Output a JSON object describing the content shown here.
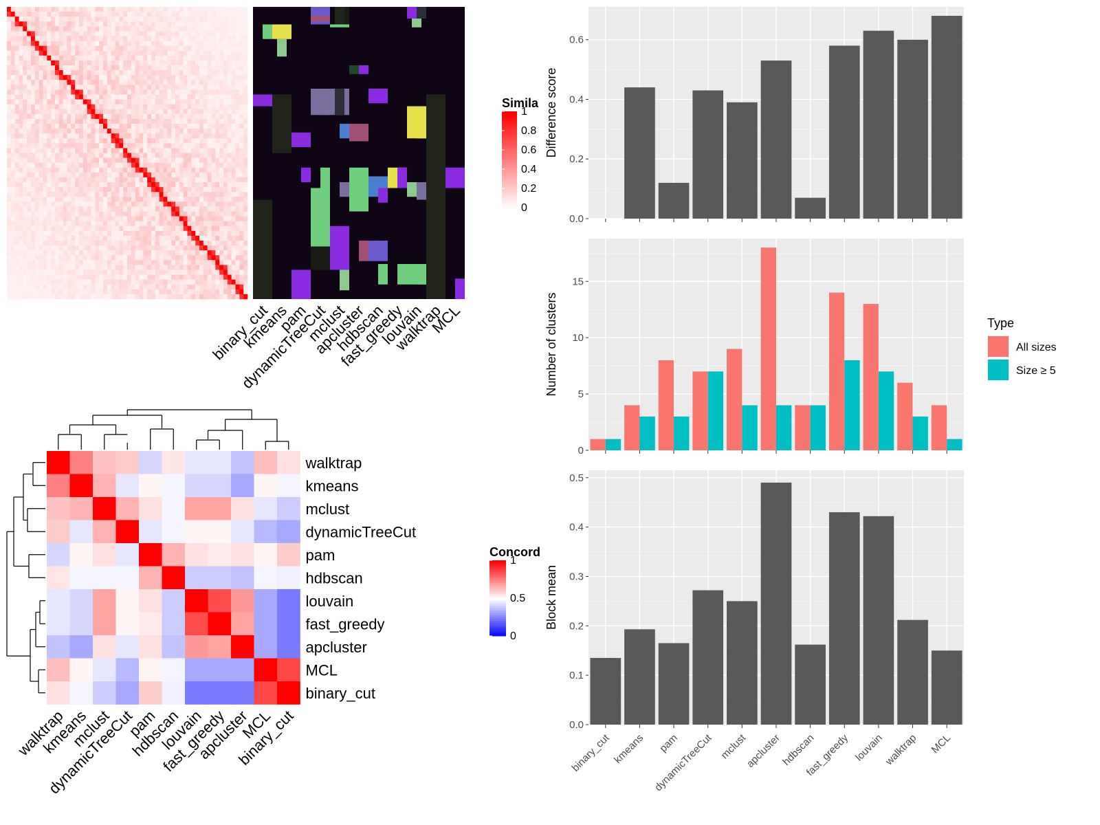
{
  "chart_data": [
    {
      "type": "heatmap",
      "legend": {
        "title": "Similarity",
        "ticks": [
          "1",
          "0.8",
          "0.6",
          "0.4",
          "0.2",
          "0"
        ]
      },
      "column_labels": [
        "binary_cut",
        "kmeans",
        "pam",
        "dynamicTreeCut",
        "mclust",
        "apcluster",
        "hdbscan",
        "fast_greedy",
        "louvain",
        "walktrap",
        "MCL"
      ],
      "colors": {
        "low": "#ffffff",
        "high": "#ff0000",
        "background": "#0f0515"
      }
    },
    {
      "type": "heatmap",
      "legend": {
        "title": "Concordance",
        "ticks": [
          "1",
          "0.5",
          "0"
        ]
      },
      "row_labels": [
        "walktrap",
        "kmeans",
        "mclust",
        "dynamicTreeCut",
        "pam",
        "hdbscan",
        "louvain",
        "fast_greedy",
        "apcluster",
        "MCL",
        "binary_cut"
      ],
      "column_labels": [
        "walktrap",
        "kmeans",
        "mclust",
        "dynamicTreeCut",
        "pam",
        "hdbscan",
        "louvain",
        "fast_greedy",
        "apcluster",
        "MCL",
        "binary_cut"
      ],
      "values": [
        [
          1.0,
          0.75,
          0.62,
          0.6,
          0.42,
          0.55,
          0.45,
          0.45,
          0.38,
          0.63,
          0.56
        ],
        [
          0.75,
          1.0,
          0.65,
          0.45,
          0.52,
          0.48,
          0.42,
          0.42,
          0.33,
          0.52,
          0.48
        ],
        [
          0.62,
          0.65,
          1.0,
          0.65,
          0.56,
          0.48,
          0.68,
          0.68,
          0.56,
          0.45,
          0.4
        ],
        [
          0.6,
          0.45,
          0.65,
          1.0,
          0.45,
          0.48,
          0.52,
          0.52,
          0.45,
          0.36,
          0.33
        ],
        [
          0.42,
          0.52,
          0.56,
          0.45,
          1.0,
          0.65,
          0.56,
          0.54,
          0.56,
          0.52,
          0.6
        ],
        [
          0.55,
          0.48,
          0.48,
          0.48,
          0.65,
          1.0,
          0.4,
          0.4,
          0.38,
          0.48,
          0.47
        ],
        [
          0.45,
          0.42,
          0.68,
          0.52,
          0.56,
          0.4,
          1.0,
          0.85,
          0.7,
          0.33,
          0.24
        ],
        [
          0.45,
          0.42,
          0.68,
          0.52,
          0.54,
          0.4,
          0.85,
          1.0,
          0.68,
          0.33,
          0.24
        ],
        [
          0.38,
          0.33,
          0.56,
          0.45,
          0.56,
          0.38,
          0.7,
          0.68,
          1.0,
          0.33,
          0.24
        ],
        [
          0.63,
          0.52,
          0.45,
          0.36,
          0.52,
          0.48,
          0.33,
          0.33,
          0.33,
          1.0,
          0.86
        ],
        [
          0.56,
          0.48,
          0.4,
          0.33,
          0.6,
          0.47,
          0.24,
          0.24,
          0.24,
          0.86,
          1.0
        ]
      ],
      "colors": {
        "low": "#0000ff",
        "mid": "#ffffff",
        "high": "#ff0000"
      }
    },
    {
      "type": "bar",
      "categories": [
        "binary_cut",
        "kmeans",
        "pam",
        "dynamicTreeCut",
        "mclust",
        "apcluster",
        "hdbscan",
        "fast_greedy",
        "louvain",
        "walktrap",
        "MCL"
      ],
      "values": [
        0,
        0.44,
        0.12,
        0.43,
        0.39,
        0.53,
        0.07,
        0.58,
        0.63,
        0.6,
        0.68
      ],
      "ylabel": "Difference score",
      "ylim": [
        0,
        0.71
      ],
      "yticks": [
        "0.0",
        "0.2",
        "0.4",
        "0.6"
      ],
      "bar_color": "#595959"
    },
    {
      "type": "bar",
      "categories": [
        "binary_cut",
        "kmeans",
        "pam",
        "dynamicTreeCut",
        "mclust",
        "apcluster",
        "hdbscan",
        "fast_greedy",
        "louvain",
        "walktrap",
        "MCL"
      ],
      "series": [
        {
          "name": "All sizes",
          "values": [
            1,
            4,
            8,
            7,
            9,
            18,
            4,
            14,
            13,
            6,
            4
          ],
          "color": "#f8766d"
        },
        {
          "name": "Size ≥ 5",
          "values": [
            1,
            3,
            3,
            7,
            4,
            4,
            4,
            8,
            7,
            3,
            1
          ],
          "color": "#00bfc4"
        }
      ],
      "ylabel": "Number of clusters",
      "ylim": [
        0,
        18.8
      ],
      "yticks": [
        "0",
        "5",
        "10",
        "15"
      ],
      "legend": {
        "title": "Type",
        "position": "right"
      }
    },
    {
      "type": "bar",
      "categories": [
        "binary_cut",
        "kmeans",
        "pam",
        "dynamicTreeCut",
        "mclust",
        "apcluster",
        "hdbscan",
        "fast_greedy",
        "louvain",
        "walktrap",
        "MCL"
      ],
      "values": [
        0.135,
        0.193,
        0.165,
        0.272,
        0.25,
        0.49,
        0.162,
        0.43,
        0.422,
        0.212,
        0.15
      ],
      "ylabel": "Block mean",
      "ylim": [
        0,
        0.515
      ],
      "yticks": [
        "0.0",
        "0.1",
        "0.2",
        "0.3",
        "0.4",
        "0.5"
      ],
      "bar_color": "#595959"
    }
  ]
}
